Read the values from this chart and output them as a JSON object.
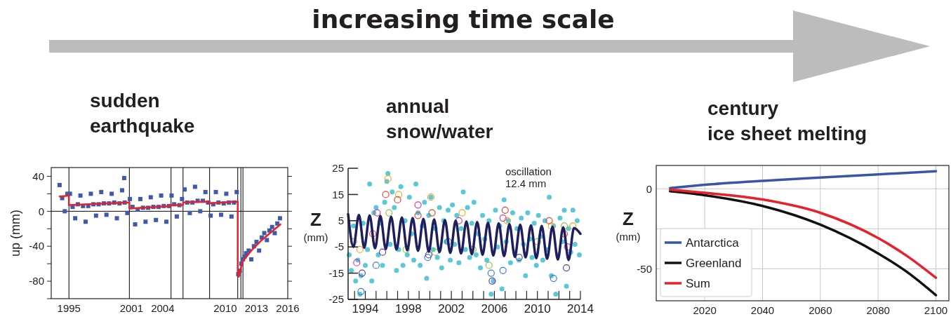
{
  "chart_data": [
    {
      "type": "scatter",
      "title": "sudden\nearthquake",
      "ylabel": "up (mm)",
      "annotations": [
        "increasing time scale"
      ],
      "xlim": [
        1993.3,
        2016
      ],
      "ylim": [
        -100,
        50
      ],
      "xticks": [
        1995,
        2001,
        2004,
        2010,
        2013,
        2016
      ],
      "yticks": [
        {
          "value": -100,
          "label": null
        },
        -80,
        {
          "value": -60,
          "label": null
        },
        -40,
        {
          "value": -20,
          "label": null
        },
        0,
        {
          "value": 20,
          "label": null
        },
        40
      ],
      "ref_lines": [
        {
          "axis": "y",
          "value": 0,
          "color": "#000000"
        },
        {
          "axis": "x",
          "value": 1995,
          "color": "#000000"
        },
        {
          "axis": "x",
          "value": 2000.8,
          "color": "#000000"
        },
        {
          "axis": "x",
          "value": 2004.8,
          "color": "#000000"
        },
        {
          "axis": "x",
          "value": 2005.95,
          "color": "#000000"
        },
        {
          "axis": "x",
          "value": 2008.5,
          "color": "#000000"
        },
        {
          "axis": "x",
          "value": 2011.2,
          "color": "#000000"
        },
        {
          "axis": "x",
          "value": 2011.5,
          "color": "#000000"
        },
        {
          "axis": "x",
          "value": 2011.7,
          "color": "#000000"
        }
      ],
      "series": [
        {
          "marker": "square",
          "color": "#3f5aa8",
          "x": [
            1994.1,
            1994.35,
            1994.6,
            1994.85,
            1995.1,
            1995.35,
            1995.6,
            1995.85,
            1996.1,
            1996.35,
            1996.6,
            1996.85,
            1997.1,
            1997.35,
            1997.6,
            1997.85,
            1998.1,
            1998.35,
            1998.6,
            1998.85,
            1999.1,
            1999.35,
            1999.6,
            1999.85,
            2000.1,
            2000.3,
            2000.35,
            2000.6,
            2000.85,
            2001.1,
            2001.35,
            2001.6,
            2001.85,
            2002.1,
            2002.35,
            2002.6,
            2002.85,
            2003.1,
            2003.35,
            2003.6,
            2003.85,
            2004.1,
            2004.35,
            2004.6,
            2004.85,
            2005.1,
            2005.35,
            2005.6,
            2005.85,
            2006.1,
            2006.35,
            2006.6,
            2006.85,
            2007.1,
            2007.35,
            2007.6,
            2007.85,
            2008.1,
            2008.35,
            2008.6,
            2008.85,
            2009.1,
            2009.35,
            2009.6,
            2009.85,
            2010.1,
            2010.35,
            2010.6,
            2010.85,
            2011.1,
            2011.25,
            2011.4,
            2011.55,
            2011.7,
            2011.85,
            2012.0,
            2012.25,
            2012.5,
            2012.75,
            2013.0,
            2013.25,
            2013.5,
            2013.75,
            2014.0,
            2014.25,
            2014.5,
            2014.75,
            2015.0,
            2015.25
          ],
          "values": [
            30,
            15,
            0,
            20,
            20,
            5,
            -8,
            8,
            18,
            6,
            -12,
            6,
            20,
            8,
            -5,
            8,
            22,
            9,
            -4,
            9,
            20,
            10,
            -8,
            9,
            24,
            38,
            10,
            -2,
            14,
            5,
            -15,
            2,
            14,
            4,
            -12,
            4,
            16,
            5,
            -10,
            5,
            18,
            6,
            -12,
            6,
            18,
            8,
            -6,
            7,
            14,
            25,
            10,
            -2,
            10,
            28,
            12,
            0,
            12,
            22,
            10,
            -5,
            8,
            22,
            10,
            -4,
            9,
            20,
            10,
            -6,
            10,
            22,
            -72,
            -68,
            -60,
            -55,
            -52,
            -48,
            -45,
            -55,
            -40,
            -35,
            -45,
            -30,
            -25,
            -33,
            -22,
            -18,
            -25,
            -14,
            -8
          ]
        },
        {
          "type": "line",
          "color": "#e8202a",
          "x": [
            1994.1,
            1995,
            1995,
            2000.8,
            2000.8,
            2004.8,
            2004.8,
            2005.95,
            2005.95,
            2008.5,
            2008.5,
            2011.2,
            2011.2,
            2011.3,
            2011.5,
            2011.7,
            2012.5,
            2013.5,
            2014.5,
            2015.3
          ],
          "values": [
            17,
            18,
            7,
            10,
            3,
            6,
            7,
            7,
            10,
            11,
            9,
            11,
            -70,
            -75,
            -65,
            -57,
            -45,
            -33,
            -23,
            -15
          ]
        }
      ]
    },
    {
      "type": "scatter",
      "title": "annual\nsnow/water",
      "ylabel": "Z\n(mm)",
      "annotations": [
        "oscillation\n12.4 mm"
      ],
      "xlim": [
        1992.4,
        2014
      ],
      "ylim": [
        -25,
        25
      ],
      "xticks": [
        {
          "value": 1993,
          "label": null
        },
        1994,
        {
          "value": 1995,
          "label": null
        },
        {
          "value": 1996,
          "label": null
        },
        {
          "value": 1997,
          "label": null
        },
        1998,
        {
          "value": 1999,
          "label": null
        },
        {
          "value": 2000,
          "label": null
        },
        {
          "value": 2001,
          "label": null
        },
        2002,
        {
          "value": 2003,
          "label": null
        },
        {
          "value": 2004,
          "label": null
        },
        {
          "value": 2005,
          "label": null
        },
        2006,
        {
          "value": 2007,
          "label": null
        },
        {
          "value": 2008,
          "label": null
        },
        {
          "value": 2009,
          "label": null
        },
        2010,
        {
          "value": 2011,
          "label": null
        },
        {
          "value": 2012,
          "label": null
        },
        {
          "value": 2013,
          "label": null
        },
        2014
      ],
      "yticks": [
        -25,
        -15,
        -5,
        5,
        15,
        25
      ],
      "series": [
        {
          "marker": "circle",
          "color": "#5bc8d8",
          "x": [
            1992.5,
            1992.7,
            1992.9,
            1993.1,
            1993.3,
            1993.5,
            1993.6,
            1993.8,
            1994.0,
            1994.2,
            1994.4,
            1994.6,
            1994.8,
            1995.0,
            1995.2,
            1995.4,
            1995.6,
            1995.8,
            1996.0,
            1996.1,
            1996.3,
            1996.5,
            1996.7,
            1996.9,
            1997.1,
            1997.3,
            1997.5,
            1997.7,
            1997.9,
            1998.1,
            1998.3,
            1998.5,
            1998.7,
            1998.9,
            1999.1,
            1999.3,
            1999.5,
            1999.7,
            1999.9,
            2000.1,
            2000.3,
            2000.5,
            2000.7,
            2000.9,
            2001.1,
            2001.3,
            2001.5,
            2001.7,
            2001.9,
            2002.1,
            2002.3,
            2002.5,
            2002.7,
            2002.9,
            2003.1,
            2003.3,
            2003.5,
            2003.7,
            2003.9,
            2004.1,
            2004.3,
            2004.5,
            2004.7,
            2004.9,
            2005.1,
            2005.3,
            2005.5,
            2005.7,
            2005.9,
            2006.1,
            2006.3,
            2006.5,
            2006.7,
            2006.9,
            2007.1,
            2007.3,
            2007.5,
            2007.7,
            2007.9,
            2008.1,
            2008.3,
            2008.5,
            2008.7,
            2008.9,
            2009.1,
            2009.3,
            2009.5,
            2009.7,
            2009.9,
            2010.1,
            2010.3,
            2010.5,
            2010.7,
            2010.9,
            2011.1,
            2011.3,
            2011.5,
            2011.7,
            2011.9,
            2012.1,
            2012.3,
            2012.5,
            2012.7,
            2012.9,
            2013.1,
            2013.3,
            2013.5,
            2013.7,
            2013.9
          ],
          "values": [
            -8,
            -14,
            3,
            -18,
            -10,
            -23,
            -16,
            4,
            -12,
            -6,
            19,
            -18,
            8,
            10,
            -8,
            4,
            -12,
            12,
            20,
            23,
            -4,
            16,
            10,
            -14,
            -6,
            18,
            -12,
            5,
            -8,
            14,
            0,
            -10,
            19,
            8,
            -12,
            3,
            12,
            -17,
            7,
            14,
            -6,
            2,
            -9,
            10,
            -13,
            5,
            -3,
            9,
            -10,
            11,
            -4,
            7,
            -11,
            2,
            16,
            -6,
            10,
            -9,
            4,
            12,
            -8,
            0,
            -13,
            7,
            -2,
            -10,
            5,
            -23,
            -18,
            9,
            -5,
            3,
            -21,
            13,
            -3,
            5,
            -11,
            8,
            -7,
            2,
            -10,
            6,
            -4,
            -16,
            8,
            -2,
            -9,
            4,
            -12,
            7,
            -1,
            -10,
            5,
            -6,
            14,
            -16,
            3,
            -23,
            -8,
            6,
            -3,
            9,
            -20,
            2,
            -7,
            9,
            -4,
            5,
            -8
          ]
        },
        {
          "marker": "circle",
          "color": "#f5a623",
          "x": [
            1993.5,
            1996.1,
            1997.1,
            2000.1,
            2003.0,
            2007.2,
            2011.3,
            2013.3
          ],
          "values": [
            -6,
            21,
            15,
            14,
            8,
            5,
            3,
            3
          ]
        },
        {
          "marker": "circle",
          "color": "#e8443a",
          "x": [
            1994.7,
            1995.9,
            1997.0,
            1998.9,
            2000.2,
            2007.0,
            2011.1,
            2012.5
          ],
          "values": [
            0,
            15,
            13,
            7,
            8,
            9,
            5,
            0
          ]
        },
        {
          "marker": "circle",
          "color": "#d63aa0",
          "x": [
            1993.2,
            1995.1,
            1998.9,
            2002.7,
            2006.8,
            2012.8
          ],
          "values": [
            -11,
            8,
            11,
            5,
            6,
            -5
          ]
        },
        {
          "marker": "circle",
          "color": "#6a3d9a",
          "x": [
            1993.7,
            1995.6,
            1999.9,
            2005.8,
            2008.3,
            2012.7
          ],
          "values": [
            -15,
            -7,
            -8,
            -18,
            -9,
            -13
          ]
        },
        {
          "marker": "circle",
          "color": "#3a7bd5",
          "x": [
            1993.6,
            1995.0,
            1999.8,
            2001.7,
            2005.7,
            2006.8,
            2011.5
          ],
          "values": [
            -22,
            -12,
            -9,
            -3,
            -15,
            -14,
            -17
          ]
        },
        {
          "marker": "circle",
          "color": "#8cc63f",
          "x": [
            1992.9,
            1996.2,
            1997.8,
            2000.5,
            2004.0,
            2005.5,
            2010.0,
            2012.5
          ],
          "values": [
            -3,
            8,
            -6,
            -7,
            -6,
            -12,
            -3,
            3
          ]
        },
        {
          "type": "line",
          "color": "#1f1f5e",
          "x": [
            1992.4,
            1992.9,
            1993.4,
            1993.9,
            1994.4,
            1994.9,
            1995.4,
            1995.9,
            1996.4,
            1996.9,
            1997.4,
            1997.9,
            1998.4,
            1998.9,
            1999.4,
            1999.9,
            2000.4,
            2000.9,
            2001.4,
            2001.9,
            2002.4,
            2002.9,
            2003.4,
            2003.9,
            2004.4,
            2004.9,
            2005.4,
            2005.9,
            2006.4,
            2006.9,
            2007.4,
            2007.9,
            2008.4,
            2008.9,
            2009.4,
            2009.9,
            2010.4,
            2010.9,
            2011.4,
            2011.9,
            2012.4,
            2012.9,
            2013.4,
            2014
          ],
          "values": [
            7.5,
            -5,
            7.2,
            -5.3,
            7.0,
            -5.5,
            6.8,
            -5.8,
            6.5,
            -6,
            6.2,
            -6.3,
            6.0,
            -6.5,
            5.7,
            -6.8,
            5.5,
            -7,
            5.2,
            -7.3,
            5.0,
            -7.5,
            4.7,
            -7.8,
            4.5,
            -8,
            4.2,
            -8.3,
            4.0,
            -8.5,
            3.7,
            -8.8,
            3.5,
            -9,
            3.2,
            -9.3,
            3.0,
            -9.5,
            2.7,
            -9.8,
            2.5,
            -10,
            2.2,
            0
          ]
        }
      ]
    },
    {
      "type": "line",
      "title": "century\nice sheet melting",
      "ylabel": "Z\n(mm)",
      "xlim": [
        2003.2,
        2104.5
      ],
      "ylim": [
        -70,
        14.6
      ],
      "xticks": [
        2020,
        2040,
        2060,
        2080,
        2100
      ],
      "yticks": [
        -50,
        {
          "value": -25,
          "label": null
        },
        0
      ],
      "grid": true,
      "legend": "bottom left",
      "series": [
        {
          "name": "Antarctica",
          "color": "#3a55a8",
          "x": [
            2008,
            2020,
            2040,
            2060,
            2080,
            2100
          ],
          "values": [
            0.5,
            2.5,
            5,
            7,
            9,
            11
          ]
        },
        {
          "name": "Greenland",
          "color": "#111111",
          "x": [
            2008,
            2020,
            2040,
            2060,
            2080,
            2090,
            2100
          ],
          "values": [
            -1.5,
            -4,
            -10.7,
            -22.4,
            -40.4,
            -52,
            -66.5
          ]
        },
        {
          "name": "Sum",
          "color": "#e8202a",
          "x": [
            2008,
            2020,
            2040,
            2060,
            2080,
            2090,
            2100
          ],
          "values": [
            -0.5,
            -2.5,
            -6.7,
            -15,
            -30.8,
            -42,
            -55.6
          ]
        }
      ]
    }
  ]
}
